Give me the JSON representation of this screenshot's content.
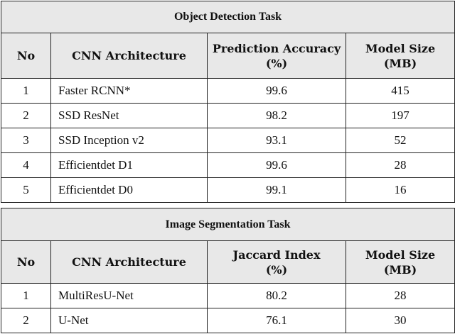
{
  "tables": [
    {
      "title": "Object Detection Task",
      "headers": [
        "No",
        "CNN Architecture",
        "Prediction Accuracy\n(%)",
        "Model Size\n(MB)"
      ],
      "h": {
        "c0": "No",
        "c1": "CNN Architecture",
        "c2a": "Prediction Accuracy",
        "c2b": "(%)",
        "c3a": "Model Size",
        "c3b": "(MB)"
      },
      "rows": [
        [
          "1",
          "Faster RCNN*",
          "99.6",
          "415"
        ],
        [
          "2",
          "SSD ResNet",
          "98.2",
          "197"
        ],
        [
          "3",
          "SSD Inception v2",
          "93.1",
          "52"
        ],
        [
          "4",
          "Efficientdet D1",
          "99.6",
          "28"
        ],
        [
          "5",
          "Efficientdet D0",
          "99.1",
          "16"
        ]
      ]
    },
    {
      "title": "Image Segmentation Task",
      "h": {
        "c0": "No",
        "c1": "CNN Architecture",
        "c2a": "Jaccard Index",
        "c2b": "(%)",
        "c3a": "Model Size",
        "c3b": "(MB)"
      },
      "rows": [
        [
          "1",
          "MultiResU-Net",
          "80.2",
          "28"
        ],
        [
          "2",
          "U-Net",
          "76.1",
          "30"
        ]
      ]
    }
  ]
}
